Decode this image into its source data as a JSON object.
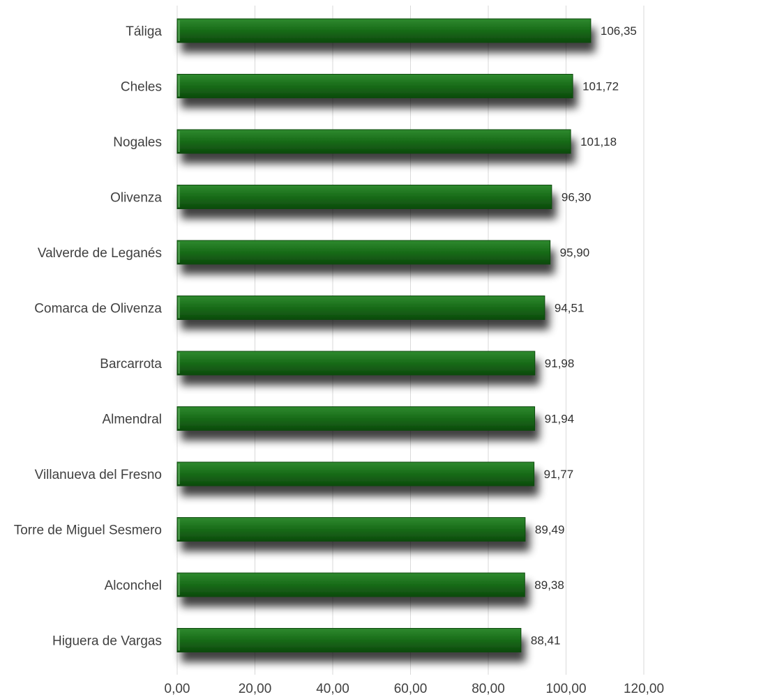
{
  "chart_data": {
    "type": "bar",
    "orientation": "horizontal",
    "categories": [
      "Táliga",
      "Cheles",
      "Nogales",
      "Olivenza",
      "Valverde de Leganés",
      "Comarca de Olivenza",
      "Barcarrota",
      "Almendral",
      "Villanueva del Fresno",
      "Torre de Miguel Sesmero",
      "Alconchel",
      "Higuera de Vargas"
    ],
    "values": [
      106.35,
      101.72,
      101.18,
      96.3,
      95.9,
      94.51,
      91.98,
      91.94,
      91.77,
      89.49,
      89.38,
      88.41
    ],
    "value_labels": [
      "106,35",
      "101,72",
      "101,18",
      "96,30",
      "95,90",
      "94,51",
      "91,98",
      "91,94",
      "91,77",
      "89,49",
      "89,38",
      "88,41"
    ],
    "xlim": [
      0,
      120
    ],
    "x_ticks": [
      "0,00",
      "20,00",
      "40,00",
      "60,00",
      "80,00",
      "100,00",
      "120,00"
    ],
    "title": "",
    "xlabel": "",
    "ylabel": "",
    "grid": "vertical",
    "legend": "none",
    "colors": {
      "bar": "#1a6e1a",
      "bar_light": "#2f8a2f",
      "bar_dark": "#0d4a0d",
      "grid": "#d9d9d9",
      "text": "#404040"
    }
  }
}
